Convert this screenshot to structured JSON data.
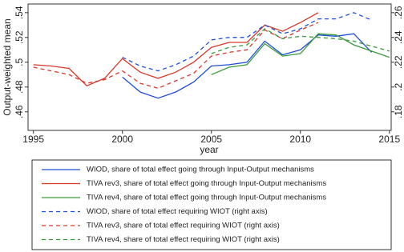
{
  "chart_data": {
    "type": "line",
    "x_label": "year",
    "y_label": "Output-weighted mean",
    "x": [
      1995,
      1996,
      1997,
      1998,
      1999,
      2000,
      2001,
      2002,
      2003,
      2004,
      2005,
      2006,
      2007,
      2008,
      2009,
      2010,
      2011,
      2012,
      2013,
      2014,
      2015
    ],
    "xlim": [
      1994.7,
      2015.1
    ],
    "xticks": [
      1995,
      2000,
      2005,
      2010,
      2015
    ],
    "ylim": [
      0.445,
      0.547
    ],
    "yticks": [
      {
        "value": 0.46,
        "label": ".46"
      },
      {
        "value": 0.48,
        "label": ".48"
      },
      {
        "value": 0.5,
        "label": ".5"
      },
      {
        "value": 0.52,
        "label": ".52"
      },
      {
        "value": 0.54,
        "label": ".54"
      }
    ],
    "y2lim": [
      0.165,
      0.267
    ],
    "y2ticks": [
      {
        "value": 0.18,
        "label": ".18"
      },
      {
        "value": 0.2,
        "label": ".2"
      },
      {
        "value": 0.22,
        "label": ".22"
      },
      {
        "value": 0.24,
        "label": ".24"
      },
      {
        "value": 0.26,
        "label": ".26"
      }
    ],
    "series": [
      {
        "name": "WIOD, share of total effect going through Input-Output mechanisms",
        "color": "#1f4fd8",
        "dashed": false,
        "values": [
          null,
          null,
          null,
          null,
          null,
          0.488,
          0.476,
          0.471,
          0.476,
          0.484,
          0.497,
          0.498,
          0.5,
          0.517,
          0.506,
          0.51,
          0.522,
          0.521,
          0.523,
          0.508,
          null
        ]
      },
      {
        "name": "TIVA rev3, share of total effect going through Input-Output mechanisms",
        "color": "#d9372b",
        "dashed": false,
        "values": [
          0.498,
          0.497,
          0.495,
          0.481,
          0.487,
          0.503,
          0.492,
          0.487,
          0.492,
          0.5,
          0.512,
          0.516,
          0.516,
          0.53,
          0.525,
          0.532,
          0.54,
          null,
          null,
          null,
          null
        ]
      },
      {
        "name": "TIVA rev4, share of total effect going through Input-Output mechanisms",
        "color": "#3a9a3a",
        "dashed": false,
        "values": [
          null,
          null,
          null,
          null,
          null,
          null,
          null,
          null,
          null,
          null,
          0.49,
          0.496,
          0.498,
          0.515,
          0.505,
          0.507,
          0.523,
          0.522,
          0.514,
          0.509,
          0.504
        ]
      },
      {
        "name": "WIOD, share of total effect requiring WIOT (right axis)",
        "color": "#1f4fd8",
        "dashed": true,
        "axis": "y2",
        "values": [
          null,
          null,
          null,
          null,
          null,
          0.224,
          0.217,
          0.213,
          0.218,
          0.225,
          0.238,
          0.24,
          0.24,
          0.25,
          0.243,
          0.247,
          0.255,
          0.255,
          0.26,
          0.254,
          null
        ]
      },
      {
        "name": "TIVA rev3, share of total effect requiring WIOT (right axis)",
        "color": "#d9372b",
        "dashed": true,
        "axis": "y2",
        "values": [
          0.216,
          0.213,
          0.21,
          0.203,
          0.206,
          0.213,
          0.203,
          0.199,
          0.205,
          0.211,
          0.225,
          0.228,
          0.23,
          0.246,
          0.239,
          0.246,
          0.252,
          null,
          null,
          null,
          null
        ]
      },
      {
        "name": "TIVA rev4, share of total effect requiring WIOT (right axis)",
        "color": "#3a9a3a",
        "dashed": true,
        "axis": "y2",
        "values": [
          null,
          null,
          null,
          null,
          null,
          null,
          null,
          null,
          null,
          null,
          0.227,
          0.232,
          0.234,
          0.247,
          0.239,
          0.241,
          0.24,
          0.239,
          0.237,
          0.233,
          0.229
        ]
      }
    ]
  }
}
